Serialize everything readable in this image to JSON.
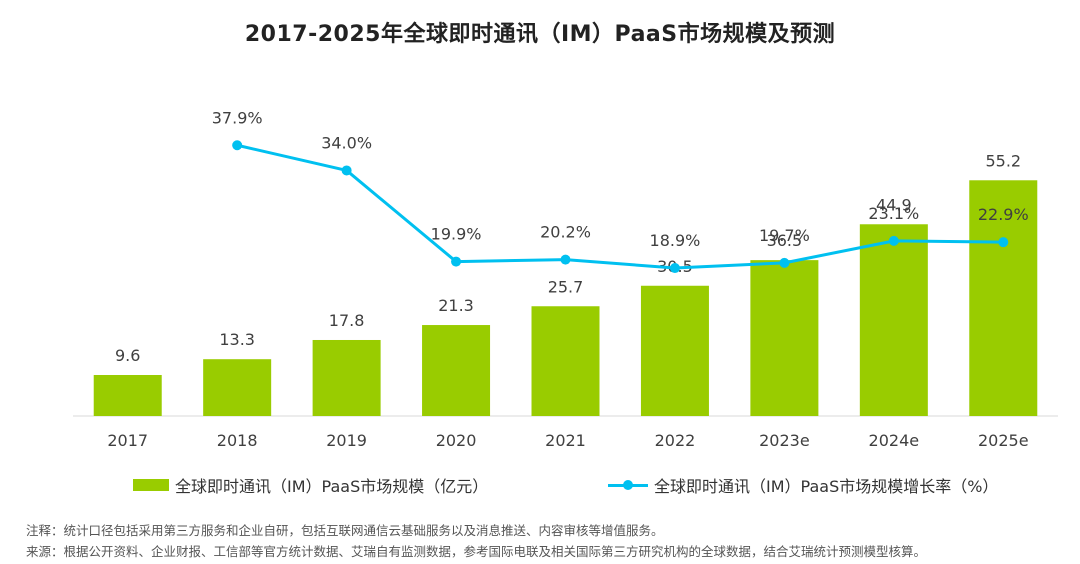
{
  "chart_data": {
    "type": "bar",
    "title": "2017-2025年全球即时通讯（IM）PaaS市场规模及预测",
    "categories": [
      "2017",
      "2018",
      "2019",
      "2020",
      "2021",
      "2022",
      "2023e",
      "2024e",
      "2025e"
    ],
    "series": [
      {
        "name": "全球即时通讯（IM）PaaS市场规模（亿元）",
        "type": "bar",
        "values": [
          9.6,
          13.3,
          17.8,
          21.3,
          25.7,
          30.5,
          36.5,
          44.9,
          55.2
        ],
        "labels": [
          "9.6",
          "13.3",
          "17.8",
          "21.3",
          "25.7",
          "30.5",
          "36.5",
          "44.9",
          "55.2"
        ],
        "color": "#99cc00"
      },
      {
        "name": "全球即时通讯（IM）PaaS市场规模增长率（%）",
        "type": "line",
        "values": [
          null,
          37.9,
          34.0,
          19.9,
          20.2,
          18.9,
          19.7,
          23.1,
          22.9
        ],
        "labels": [
          "",
          "37.9%",
          "34.0%",
          "19.9%",
          "20.2%",
          "18.9%",
          "19.7%",
          "23.1%",
          "22.9%"
        ],
        "color": "#00c0f0"
      }
    ],
    "bar_axis": {
      "min": 0,
      "max": 74
    },
    "line_axis": {
      "min": -4,
      "max": 48
    },
    "grid": false,
    "legend_position": "bottom",
    "axis_color": "#d9d9d9"
  },
  "notes": {
    "note": "注释：统计口径包括采用第三方服务和企业自研，包括互联网通信云基础服务以及消息推送、内容审核等增值服务。",
    "source": "来源：根据公开资料、企业财报、工信部等官方统计数据、艾瑞自有监测数据，参考国际电联及相关国际第三方研究机构的全球数据，结合艾瑞统计预测模型核算。"
  }
}
